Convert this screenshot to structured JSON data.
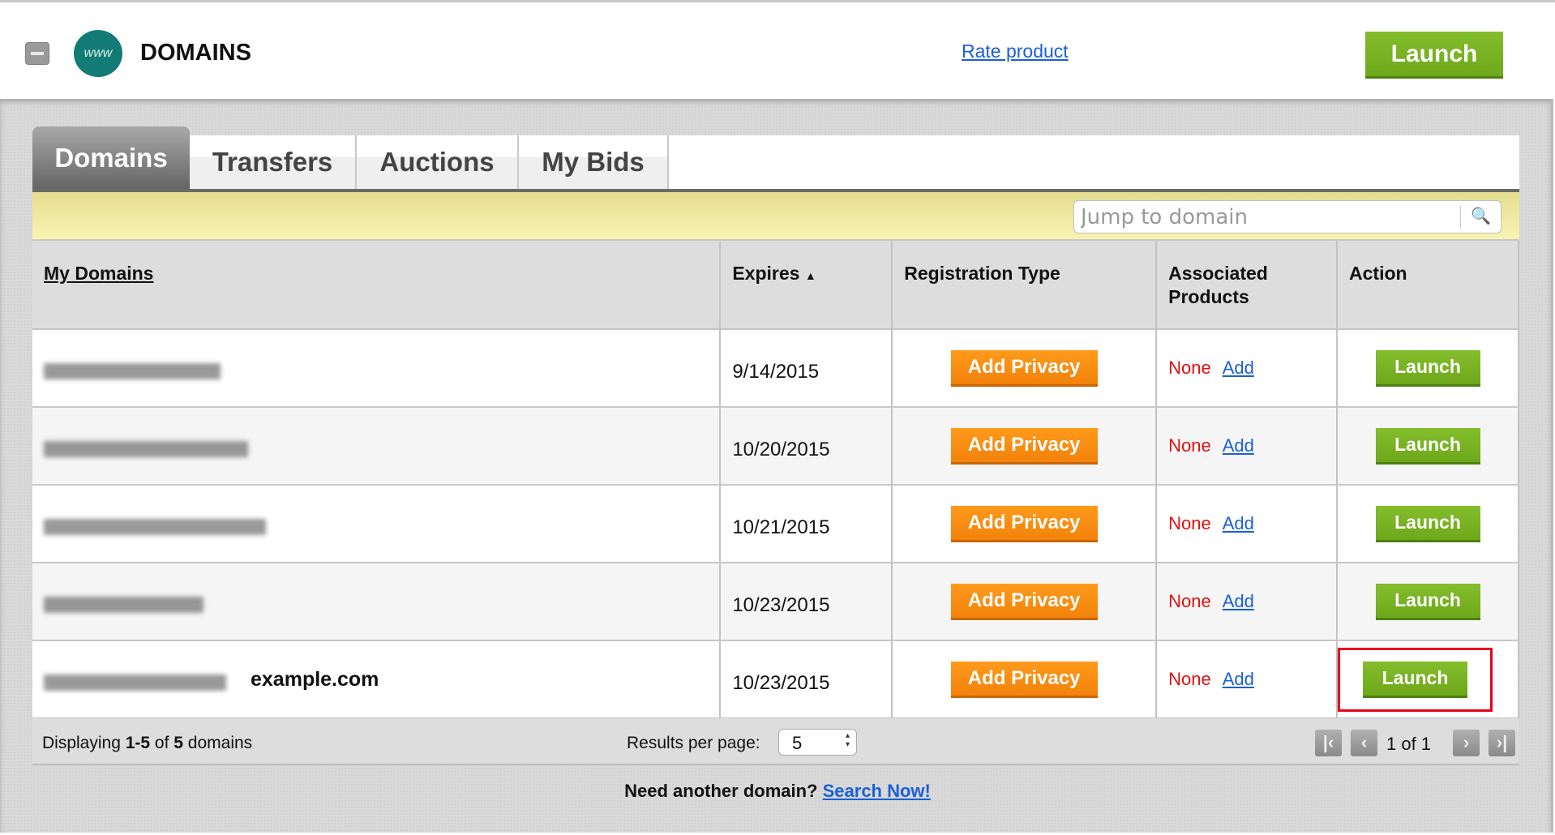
{
  "header": {
    "title": "DOMAINS",
    "logo_text": "www",
    "rate_link": "Rate product",
    "launch_label": "Launch"
  },
  "tabs": [
    {
      "label": "Domains",
      "active": true
    },
    {
      "label": "Transfers"
    },
    {
      "label": "Auctions"
    },
    {
      "label": "My Bids"
    }
  ],
  "search": {
    "placeholder": "Jump to domain",
    "icon": "search-icon"
  },
  "table": {
    "headers": {
      "domain": "My Domains",
      "expires": "Expires",
      "expires_sort": "▲",
      "reg_type": "Registration Type",
      "assoc": "Associated Products",
      "action": "Action"
    },
    "rows": [
      {
        "expires": "9/14/2015",
        "privacy": "Add Privacy",
        "assoc": "None",
        "add": "Add",
        "launch": "Launch"
      },
      {
        "expires": "10/20/2015",
        "privacy": "Add Privacy",
        "assoc": "None",
        "add": "Add",
        "launch": "Launch"
      },
      {
        "expires": "10/21/2015",
        "privacy": "Add Privacy",
        "assoc": "None",
        "add": "Add",
        "launch": "Launch"
      },
      {
        "expires": "10/23/2015",
        "privacy": "Add Privacy",
        "assoc": "None",
        "add": "Add",
        "launch": "Launch"
      },
      {
        "expires": "10/23/2015",
        "label": "example.com",
        "privacy": "Add Privacy",
        "assoc": "None",
        "add": "Add",
        "launch": "Launch",
        "highlighted": true
      }
    ]
  },
  "footer": {
    "displaying_prefix": "Displaying ",
    "range": "1-5",
    "of": " of ",
    "total": "5",
    "suffix": " domains",
    "results_label": "Results per page:",
    "results_value": "5",
    "page_text": "1 of 1"
  },
  "bottom": {
    "text": "Need another domain?",
    "link": "Search Now!"
  },
  "colors": {
    "green": "#78b424",
    "orange": "#f7890f",
    "highlight": "#e8001a",
    "link": "#1a5fd8"
  }
}
